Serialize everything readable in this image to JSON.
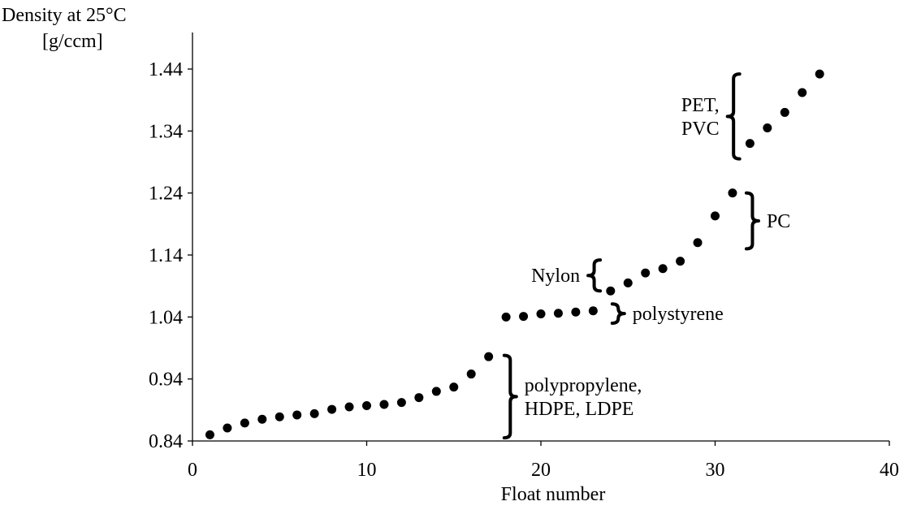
{
  "chart_data": {
    "type": "scatter",
    "title": "",
    "xlabel": "Float number",
    "ylabel_lines": [
      "Density at 25°C",
      "[g/ccm]"
    ],
    "xlim": [
      0,
      40
    ],
    "ylim": [
      0.84,
      1.5
    ],
    "x_ticks": [
      "0",
      "10",
      "20",
      "30",
      "40"
    ],
    "x_tick_values": [
      0,
      10,
      20,
      30,
      40
    ],
    "y_ticks": [
      "0.84",
      "0.94",
      "1.04",
      "1.14",
      "1.24",
      "1.34",
      "1.44"
    ],
    "y_tick_values": [
      0.84,
      0.94,
      1.04,
      1.14,
      1.24,
      1.34,
      1.44
    ],
    "grid": false,
    "legend": "none",
    "marker_color": "#000000",
    "points": [
      {
        "x": 1,
        "y": 0.85
      },
      {
        "x": 2,
        "y": 0.861
      },
      {
        "x": 3,
        "y": 0.869
      },
      {
        "x": 4,
        "y": 0.875
      },
      {
        "x": 5,
        "y": 0.879
      },
      {
        "x": 6,
        "y": 0.882
      },
      {
        "x": 7,
        "y": 0.884
      },
      {
        "x": 8,
        "y": 0.891
      },
      {
        "x": 9,
        "y": 0.895
      },
      {
        "x": 10,
        "y": 0.897
      },
      {
        "x": 11,
        "y": 0.899
      },
      {
        "x": 12,
        "y": 0.902
      },
      {
        "x": 13,
        "y": 0.91
      },
      {
        "x": 14,
        "y": 0.92
      },
      {
        "x": 15,
        "y": 0.927
      },
      {
        "x": 16,
        "y": 0.948
      },
      {
        "x": 17,
        "y": 0.976
      },
      {
        "x": 18,
        "y": 1.04
      },
      {
        "x": 19,
        "y": 1.041
      },
      {
        "x": 20,
        "y": 1.045
      },
      {
        "x": 21,
        "y": 1.046
      },
      {
        "x": 22,
        "y": 1.048
      },
      {
        "x": 23,
        "y": 1.05
      },
      {
        "x": 24,
        "y": 1.082
      },
      {
        "x": 25,
        "y": 1.095
      },
      {
        "x": 26,
        "y": 1.111
      },
      {
        "x": 27,
        "y": 1.118
      },
      {
        "x": 28,
        "y": 1.13
      },
      {
        "x": 29,
        "y": 1.16
      },
      {
        "x": 30,
        "y": 1.203
      },
      {
        "x": 31,
        "y": 1.24
      },
      {
        "x": 32,
        "y": 1.32
      },
      {
        "x": 33,
        "y": 1.345
      },
      {
        "x": 34,
        "y": 1.37
      },
      {
        "x": 35,
        "y": 1.402
      },
      {
        "x": 36,
        "y": 1.432
      }
    ],
    "annotations": [
      {
        "lines": [
          "PET,",
          "PVC"
        ],
        "brace_x": 31.5,
        "brace_side": "left",
        "y_from": 1.295,
        "y_to": 1.432,
        "text_anchor": "end"
      },
      {
        "lines": [
          "PC"
        ],
        "brace_x": 31.7,
        "brace_side": "right",
        "y_from": 1.15,
        "y_to": 1.24,
        "text_anchor": "start"
      },
      {
        "lines": [
          "Nylon"
        ],
        "brace_x": 23.5,
        "brace_side": "left",
        "y_from": 1.082,
        "y_to": 1.132,
        "text_anchor": "end"
      },
      {
        "lines": [
          "polystyrene"
        ],
        "brace_x": 24.0,
        "brace_side": "right",
        "y_from": 1.03,
        "y_to": 1.061,
        "text_anchor": "start"
      },
      {
        "lines": [
          "polypropylene,",
          "HDPE, LDPE"
        ],
        "brace_x": 17.8,
        "brace_side": "right",
        "y_from": 0.845,
        "y_to": 0.978,
        "text_anchor": "start"
      }
    ]
  }
}
